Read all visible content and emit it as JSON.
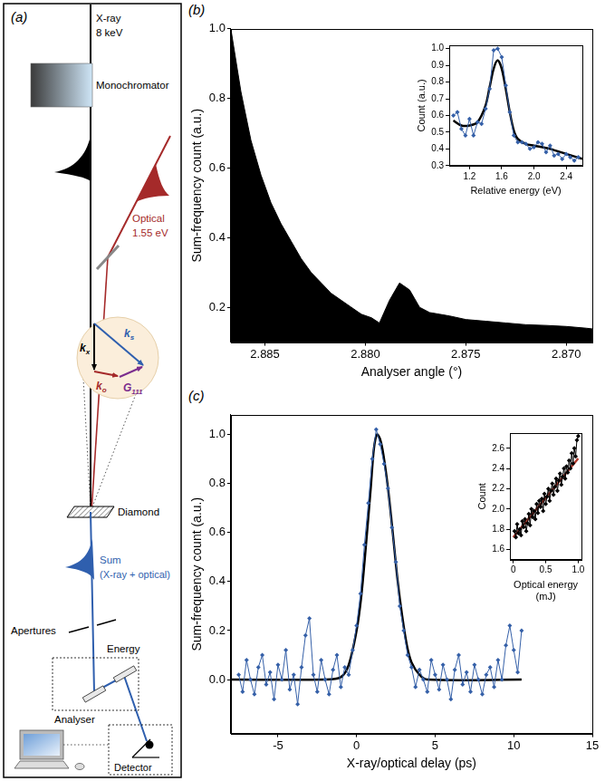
{
  "diagram": {
    "panel": "(a)",
    "xray": [
      "X-ray",
      "8 keV"
    ],
    "monochromator": "Monochromator",
    "optical": [
      "Optical",
      "1.55 eV"
    ],
    "vectors": [
      {
        "symbol": "k",
        "subscript": "x"
      },
      {
        "symbol": "k",
        "subscript": "s"
      },
      {
        "symbol": "k",
        "subscript": "o"
      },
      {
        "symbol": "G",
        "subscript": "111"
      }
    ],
    "crystal": "Diamond",
    "sum": [
      "Sum",
      "(X-ray + optical)"
    ],
    "apertures": "Apertures",
    "energy": "Energy",
    "analyser": "Analyser",
    "detector": "Detector"
  },
  "chart_data": [
    {
      "panel": "(b)",
      "type": "area",
      "x_label": "Analyser angle (°)",
      "y_label": "Sum-frequency count (a.u.)",
      "color": "#000000",
      "x": [
        2.8867,
        2.8862,
        2.8857,
        2.8852,
        2.8847,
        2.8842,
        2.8837,
        2.8832,
        2.8827,
        2.8822,
        2.8817,
        2.8812,
        2.8807,
        2.8802,
        2.8797,
        2.8793,
        2.8788,
        2.8783,
        2.8778,
        2.8773,
        2.8768,
        2.8763,
        2.8758,
        2.875,
        2.874,
        2.873,
        2.872,
        2.871,
        2.87,
        2.869,
        2.8687
      ],
      "values": [
        1.0,
        0.82,
        0.68,
        0.58,
        0.5,
        0.44,
        0.39,
        0.34,
        0.3,
        0.27,
        0.24,
        0.22,
        0.2,
        0.18,
        0.17,
        0.155,
        0.22,
        0.27,
        0.25,
        0.2,
        0.185,
        0.18,
        0.175,
        0.165,
        0.16,
        0.155,
        0.15,
        0.148,
        0.145,
        0.14,
        0.138
      ],
      "xlim": [
        2.8867,
        2.8687
      ],
      "xticks": [
        2.885,
        {
          "value": 2.88,
          "label": "2.880"
        },
        2.875,
        {
          "value": 2.87,
          "label": "2.870"
        }
      ],
      "ylim": [
        0.1,
        1.0
      ],
      "yticks": [
        0.2,
        0.4,
        0.6,
        0.8,
        {
          "value": 1,
          "label": "1.0"
        }
      ],
      "grid": false,
      "inset": {
        "type": "line",
        "x_label": "Relative energy (eV)",
        "y_label": "Count (a.u.)",
        "series": [
          {
            "type": "line",
            "color": "#3560a8",
            "marker": "diamond",
            "x": [
              1.0,
              1.05,
              1.1,
              1.15,
              1.2,
              1.25,
              1.3,
              1.35,
              1.4,
              1.45,
              1.5,
              1.55,
              1.6,
              1.65,
              1.7,
              1.75,
              1.8,
              1.85,
              1.9,
              1.95,
              2.0,
              2.05,
              2.1,
              2.15,
              2.2,
              2.25,
              2.3,
              2.35,
              2.4,
              2.45,
              2.5,
              2.55
            ],
            "values": [
              0.6,
              0.62,
              0.52,
              0.48,
              0.58,
              0.48,
              0.56,
              0.55,
              0.64,
              0.76,
              0.99,
              1.0,
              0.95,
              0.78,
              0.62,
              0.48,
              0.44,
              0.44,
              0.43,
              0.4,
              0.41,
              0.44,
              0.43,
              0.38,
              0.42,
              0.36,
              0.37,
              0.34,
              0.37,
              0.35,
              0.33,
              0.35
            ]
          },
          {
            "type": "line",
            "color": "#000000",
            "marker": "none",
            "x": [
              1.0,
              1.1,
              1.2,
              1.3,
              1.4,
              1.45,
              1.5,
              1.55,
              1.6,
              1.65,
              1.7,
              1.75,
              1.8,
              1.9,
              2.0,
              2.2,
              2.4,
              2.6
            ],
            "values": [
              0.57,
              0.54,
              0.54,
              0.56,
              0.66,
              0.77,
              0.88,
              0.93,
              0.88,
              0.76,
              0.62,
              0.51,
              0.46,
              0.43,
              0.42,
              0.4,
              0.37,
              0.34
            ]
          }
        ],
        "xlim": [
          0.95,
          2.6
        ],
        "xticks": [
          1.2,
          1.6,
          {
            "value": 2,
            "label": "2.0"
          },
          2.4
        ],
        "ylim": [
          0.3,
          1.02
        ],
        "yticks": [
          0.3,
          0.4,
          0.5,
          0.6,
          0.7,
          0.8,
          0.9,
          {
            "value": 1,
            "label": "1.0"
          }
        ],
        "grid": false
      }
    },
    {
      "panel": "(c)",
      "type": "line",
      "x_label": "X-ray/optical delay (ps)",
      "y_label": "Sum-frequency count (a.u.)",
      "series": [
        {
          "type": "line",
          "color": "#3560a8",
          "marker": "diamond",
          "x": [
            -7.5,
            -7.25,
            -7.0,
            -6.75,
            -6.5,
            -6.25,
            -6.0,
            -5.75,
            -5.5,
            -5.25,
            -5.0,
            -4.75,
            -4.5,
            -4.25,
            -4.0,
            -3.75,
            -3.5,
            -3.25,
            -3.0,
            -2.75,
            -2.5,
            -2.25,
            -2.0,
            -1.75,
            -1.5,
            -1.25,
            -1.0,
            -0.75,
            -0.5,
            -0.25,
            0.0,
            0.25,
            0.5,
            0.75,
            1.0,
            1.25,
            1.5,
            1.75,
            2.0,
            2.25,
            2.5,
            2.75,
            3.0,
            3.25,
            3.5,
            3.75,
            4.0,
            4.25,
            4.5,
            4.75,
            5.0,
            5.25,
            5.5,
            5.75,
            6.0,
            6.25,
            6.5,
            6.75,
            7.0,
            7.25,
            7.5,
            7.75,
            8.0,
            8.25,
            8.5,
            8.75,
            9.0,
            9.25,
            9.5,
            9.75,
            10.0,
            10.25,
            10.5
          ],
          "values": [
            0.02,
            -0.05,
            0.08,
            0.0,
            -0.06,
            0.05,
            0.1,
            -0.02,
            0.03,
            -0.08,
            0.06,
            0.0,
            0.12,
            -0.04,
            0.02,
            -0.1,
            0.05,
            0.18,
            0.25,
            0.02,
            -0.05,
            0.08,
            0.0,
            -0.06,
            0.04,
            0.1,
            -0.03,
            0.05,
            0.02,
            0.12,
            0.22,
            0.35,
            0.55,
            0.72,
            0.9,
            1.02,
            0.96,
            0.88,
            0.78,
            0.62,
            0.48,
            0.3,
            0.2,
            0.1,
            0.05,
            -0.03,
            0.04,
            0.0,
            -0.05,
            0.08,
            0.02,
            -0.04,
            0.06,
            0.0,
            -0.08,
            0.04,
            0.1,
            -0.02,
            0.03,
            -0.05,
            0.06,
            0.0,
            -0.06,
            0.02,
            0.05,
            -0.03,
            0.08,
            0.0,
            0.14,
            0.22,
            0.12,
            0.03,
            0.2
          ]
        },
        {
          "type": "line",
          "color": "#000000",
          "marker": "none",
          "x": [
            -8,
            -2,
            -1,
            -0.5,
            0,
            0.3,
            0.6,
            0.9,
            1.1,
            1.3,
            1.5,
            1.7,
            2.0,
            2.3,
            2.6,
            2.9,
            3.2,
            3.5,
            4.0,
            4.5,
            10.5
          ],
          "values": [
            0,
            0,
            0.01,
            0.06,
            0.2,
            0.34,
            0.55,
            0.78,
            0.94,
            1.0,
            0.98,
            0.92,
            0.78,
            0.6,
            0.41,
            0.26,
            0.14,
            0.07,
            0.02,
            0,
            0
          ]
        }
      ],
      "xlim": [
        -8,
        15
      ],
      "xticks": [
        -5,
        0,
        5,
        10,
        15
      ],
      "ylim": [
        -0.22,
        1.08
      ],
      "yticks": [
        {
          "value": 0,
          "label": "0.0"
        },
        0.2,
        0.4,
        0.6,
        0.8,
        {
          "value": 1,
          "label": "1.0"
        }
      ],
      "grid": false,
      "inset": {
        "type": "line",
        "x_label": [
          "Optical energy",
          "(mJ)"
        ],
        "y_label": "Count",
        "series": [
          {
            "type": "line",
            "color": "#000000",
            "marker": "diamond",
            "x": [
              0.02,
              0.04,
              0.06,
              0.08,
              0.1,
              0.12,
              0.14,
              0.16,
              0.18,
              0.2,
              0.22,
              0.24,
              0.26,
              0.28,
              0.3,
              0.32,
              0.34,
              0.36,
              0.38,
              0.4,
              0.42,
              0.44,
              0.46,
              0.48,
              0.5,
              0.52,
              0.54,
              0.56,
              0.58,
              0.6,
              0.62,
              0.64,
              0.66,
              0.68,
              0.7,
              0.72,
              0.74,
              0.76,
              0.78,
              0.8,
              0.82,
              0.84,
              0.86,
              0.88,
              0.9,
              0.92,
              0.94,
              0.96,
              0.98,
              1.0
            ],
            "values": [
              1.78,
              1.72,
              1.85,
              1.76,
              1.8,
              1.74,
              1.88,
              1.82,
              1.9,
              1.78,
              1.86,
              1.95,
              1.84,
              2.0,
              1.92,
              1.98,
              1.9,
              2.05,
              1.96,
              2.08,
              2.02,
              2.1,
              1.98,
              2.15,
              2.05,
              2.12,
              2.2,
              2.08,
              2.18,
              2.25,
              2.14,
              2.22,
              2.3,
              2.18,
              2.28,
              2.35,
              2.24,
              2.32,
              2.4,
              2.3,
              2.42,
              2.36,
              2.48,
              2.4,
              2.55,
              2.45,
              2.6,
              2.52,
              2.68,
              2.72
            ]
          },
          {
            "type": "line",
            "color": "#b03a2e",
            "marker": "none",
            "x": [
              0,
              1
            ],
            "values": [
              1.72,
              2.5
            ]
          }
        ],
        "xlim": [
          -0.05,
          1.05
        ],
        "xticks": [
          0,
          0.5,
          {
            "value": 1,
            "label": "1.0"
          }
        ],
        "ylim": [
          1.5,
          2.75
        ],
        "yticks": [
          1.6,
          1.8,
          {
            "value": 2,
            "label": "2.0"
          },
          2.2,
          2.4,
          2.6
        ],
        "grid": false
      }
    }
  ]
}
